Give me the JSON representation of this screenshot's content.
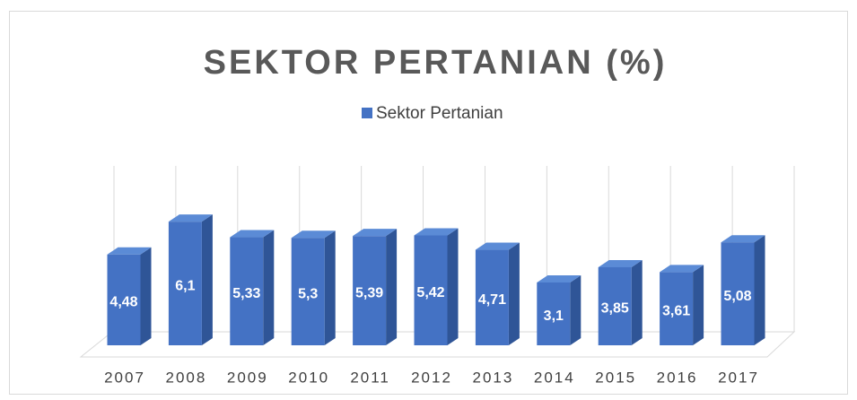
{
  "chart_data": {
    "type": "bar3d",
    "title": "SEKTOR PERTANIAN (%)",
    "categories": [
      "2007",
      "2008",
      "2009",
      "2010",
      "2011",
      "2012",
      "2013",
      "2014",
      "2015",
      "2016",
      "2017"
    ],
    "series": [
      {
        "name": "Sektor Pertanian",
        "color": "#4472c4",
        "values": [
          4.48,
          6.1,
          5.33,
          5.3,
          5.39,
          5.42,
          4.71,
          3.1,
          3.85,
          3.61,
          5.08
        ],
        "value_labels": [
          "4,48",
          "6,1",
          "5,33",
          "5,3",
          "5,39",
          "5,42",
          "4,71",
          "3,1",
          "3,85",
          "3,61",
          "5,08"
        ]
      }
    ]
  }
}
